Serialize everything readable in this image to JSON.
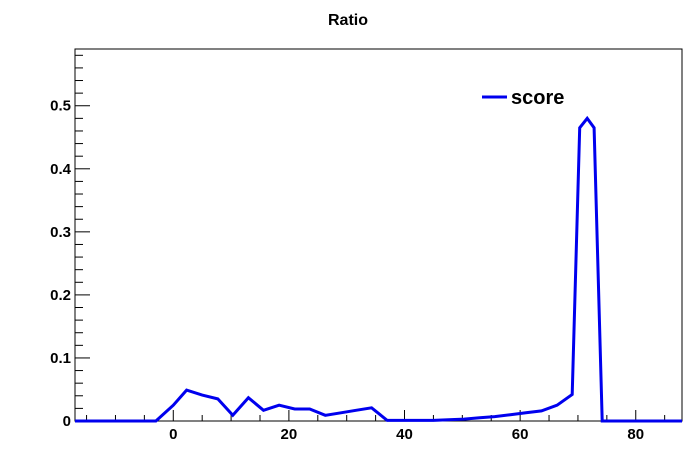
{
  "chart_data": {
    "type": "line",
    "title": "Ratio",
    "xlabel": "",
    "ylabel": "",
    "xlim": [
      -17,
      88
    ],
    "ylim": [
      0,
      0.59
    ],
    "x_ticks": [
      0,
      20,
      40,
      60,
      80
    ],
    "x_tick_labels": [
      "0",
      "20",
      "40",
      "60",
      "80"
    ],
    "y_ticks": [
      0,
      0.1,
      0.2,
      0.3,
      0.4,
      0.5
    ],
    "y_tick_labels": [
      "0",
      "0.1",
      "0.2",
      "0.3",
      "0.4",
      "0.5"
    ],
    "grid": false,
    "legend_position": "top-right",
    "series": [
      {
        "name": "score",
        "color": "#0000ee",
        "x": [
          -17,
          -14,
          -11,
          -8,
          -5,
          -3,
          0,
          2.3,
          5,
          7.7,
          10.3,
          13,
          15.6,
          18.3,
          21,
          23.6,
          26.3,
          29,
          31.6,
          34.3,
          37,
          39.6,
          42.3,
          45,
          47.6,
          50.3,
          53,
          55.6,
          58.3,
          61,
          63.7,
          66.4,
          69,
          70.3,
          71.6,
          72.8,
          74.2,
          77,
          80,
          83,
          86,
          88
        ],
        "y": [
          0,
          0,
          0,
          0,
          0,
          0,
          0.025,
          0.049,
          0.041,
          0.035,
          0.009,
          0.037,
          0.017,
          0.025,
          0.019,
          0.019,
          0.009,
          0.013,
          0.017,
          0.021,
          0.001,
          0.001,
          0.001,
          0.001,
          0.002,
          0.003,
          0.005,
          0.007,
          0.01,
          0.013,
          0.016,
          0.025,
          0.042,
          0.465,
          0.48,
          0.465,
          0,
          0,
          0,
          0,
          0,
          0
        ]
      }
    ]
  }
}
